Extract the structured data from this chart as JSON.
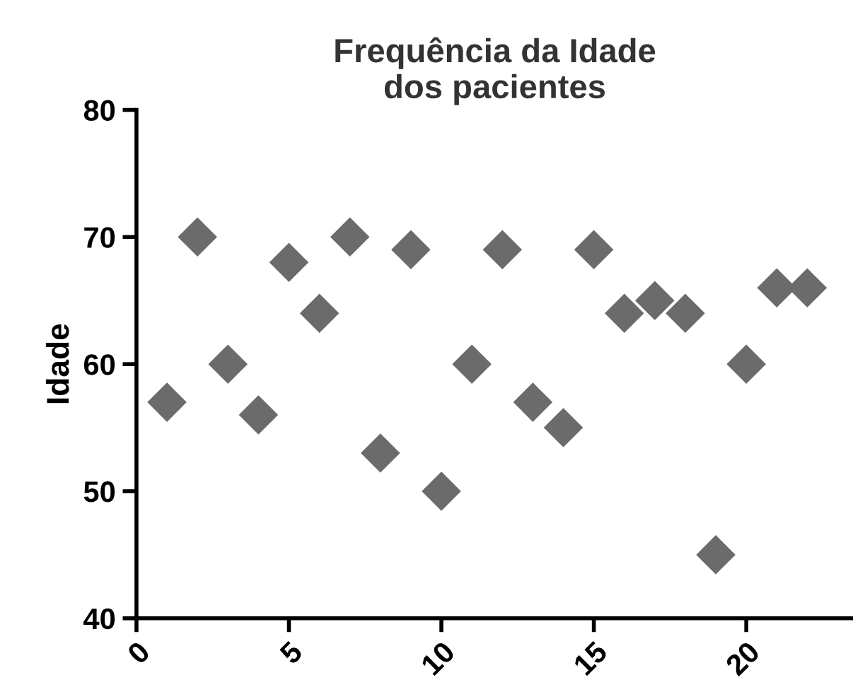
{
  "chart_data": {
    "type": "scatter",
    "title": "Frequência da Idade\ndos pacientes",
    "ylabel": "Idade",
    "x": [
      1,
      2,
      3,
      4,
      5,
      6,
      7,
      8,
      9,
      10,
      11,
      12,
      13,
      14,
      15,
      16,
      17,
      18,
      19,
      20,
      21,
      22
    ],
    "series": [
      {
        "color": "#6b6b6b",
        "values": [
          57,
          70,
          60,
          56,
          68,
          64,
          70,
          53,
          69,
          50,
          60,
          69,
          57,
          55,
          69,
          64,
          65,
          64,
          45,
          60,
          66,
          66
        ]
      }
    ],
    "marker": "diamond",
    "xlim": [
      0,
      23.5
    ],
    "xticks": [
      0,
      5,
      10,
      15,
      20
    ],
    "ylim": [
      40,
      80
    ],
    "yticks": [
      40,
      50,
      60,
      70,
      80
    ],
    "grid": false,
    "legend": false
  }
}
